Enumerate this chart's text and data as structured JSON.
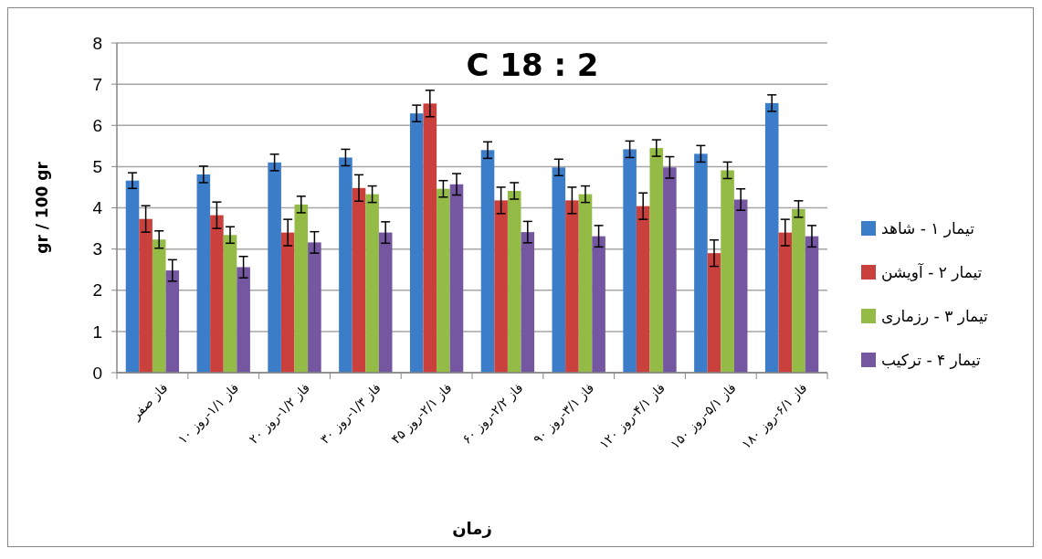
{
  "chart_data": {
    "type": "bar",
    "title": "C 18 : 2",
    "xlabel": "زمان",
    "ylabel": "gr / 100 gr",
    "categories": [
      "فاز صفر",
      "فاز ۱/۱-روز ۱۰",
      "فاز ۱/۲-روز ۲۰",
      "فاز ۱/۳-روز ۳۰",
      "فاز ۲/۱-روز ۴۵",
      "فاز ۲/۲-روز ۶۰",
      "فاز ۳/۱-روز ۹۰",
      "فاز ۴/۱-روز ۱۲۰",
      "فاز ۵/۱-روز ۱۵۰",
      "فاز ۶/۱-روز ۱۸۰"
    ],
    "series": [
      {
        "name": "تیمار ۱ - شاهد",
        "color": "#3c7dc9",
        "values": [
          4.66,
          4.81,
          5.1,
          5.22,
          6.29,
          5.4,
          4.98,
          5.42,
          5.31,
          6.54
        ],
        "errors": [
          0.19,
          0.2,
          0.2,
          0.2,
          0.2,
          0.2,
          0.2,
          0.2,
          0.2,
          0.2
        ]
      },
      {
        "name": "تیمار ۲ - آویشن",
        "color": "#c9403d",
        "values": [
          3.73,
          3.82,
          3.4,
          4.48,
          6.53,
          4.18,
          4.18,
          4.04,
          2.9,
          3.4
        ],
        "errors": [
          0.32,
          0.32,
          0.32,
          0.32,
          0.32,
          0.32,
          0.32,
          0.32,
          0.32,
          0.32
        ]
      },
      {
        "name": "تیمار ۳ - رزماری",
        "color": "#93bb45",
        "values": [
          3.23,
          3.34,
          4.08,
          4.33,
          4.46,
          4.41,
          4.33,
          5.45,
          4.91,
          3.97
        ],
        "errors": [
          0.21,
          0.2,
          0.2,
          0.2,
          0.2,
          0.2,
          0.2,
          0.2,
          0.2,
          0.2
        ]
      },
      {
        "name": "تیمار ۴ - ترکیب",
        "color": "#7556a0",
        "values": [
          2.48,
          2.56,
          3.16,
          3.4,
          4.57,
          3.41,
          3.31,
          4.98,
          4.2,
          3.31
        ],
        "errors": [
          0.26,
          0.26,
          0.26,
          0.26,
          0.26,
          0.26,
          0.26,
          0.26,
          0.26,
          0.26
        ]
      }
    ],
    "ylim": [
      0,
      8
    ],
    "yticks": [
      0,
      1,
      2,
      3,
      4,
      5,
      6,
      7,
      8
    ],
    "grid": "y",
    "legend": "right"
  }
}
